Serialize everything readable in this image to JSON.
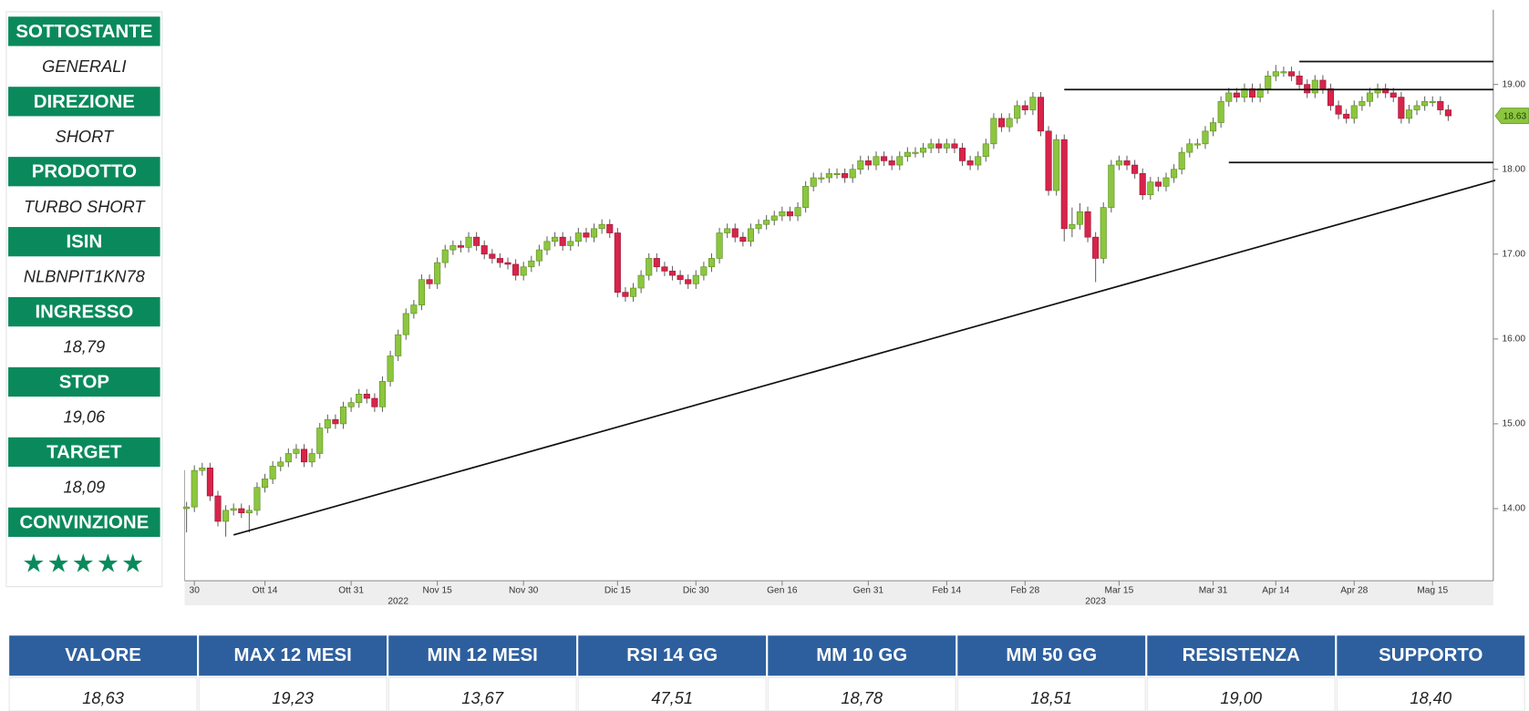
{
  "panel": {
    "rows": [
      {
        "label": "SOTTOSTANTE",
        "value": "GENERALI"
      },
      {
        "label": "DIREZIONE",
        "value": "SHORT"
      },
      {
        "label": "PRODOTTO",
        "value": "TURBO SHORT"
      },
      {
        "label": "ISIN",
        "value": "NLBNPIT1KN78"
      },
      {
        "label": "INGRESSO",
        "value": "18,79"
      },
      {
        "label": "STOP",
        "value": "19,06"
      },
      {
        "label": "TARGET",
        "value": "18,09"
      },
      {
        "label": "CONVINZIONE",
        "value": "★★★★★"
      }
    ]
  },
  "chart_data": {
    "type": "candlestick",
    "up_color": "#8cc63f",
    "down_color": "#d7244a",
    "open": [
      14.0,
      14.02,
      14.45,
      14.48,
      14.15,
      13.85,
      13.98,
      14.0,
      13.95,
      13.98,
      14.25,
      14.35,
      14.5,
      14.55,
      14.65,
      14.7,
      14.55,
      14.65,
      14.95,
      15.05,
      15.0,
      15.2,
      15.25,
      15.35,
      15.3,
      15.2,
      15.5,
      15.8,
      16.05,
      16.3,
      16.4,
      16.7,
      16.65,
      16.9,
      17.05,
      17.1,
      17.08,
      17.2,
      17.1,
      17.0,
      16.95,
      16.9,
      16.88,
      16.75,
      16.85,
      16.92,
      17.05,
      17.15,
      17.2,
      17.1,
      17.15,
      17.25,
      17.2,
      17.3,
      17.35,
      17.25,
      16.55,
      16.5,
      16.6,
      16.75,
      16.95,
      16.85,
      16.8,
      16.75,
      16.7,
      16.65,
      16.75,
      16.85,
      16.95,
      17.25,
      17.3,
      17.2,
      17.15,
      17.3,
      17.35,
      17.4,
      17.45,
      17.5,
      17.45,
      17.55,
      17.8,
      17.9,
      17.9,
      17.95,
      17.95,
      17.9,
      18.0,
      18.1,
      18.05,
      18.15,
      18.1,
      18.05,
      18.15,
      18.2,
      18.2,
      18.25,
      18.3,
      18.25,
      18.3,
      18.25,
      18.1,
      18.05,
      18.15,
      18.3,
      18.6,
      18.5,
      18.6,
      18.75,
      18.7,
      18.85,
      18.45,
      17.75,
      18.35,
      17.3,
      17.35,
      17.5,
      17.2,
      16.95,
      17.55,
      18.05,
      18.1,
      18.05,
      17.95,
      17.7,
      17.85,
      17.8,
      17.9,
      18.0,
      18.2,
      18.3,
      18.3,
      18.45,
      18.55,
      18.8,
      18.9,
      18.85,
      18.95,
      18.85,
      18.95,
      19.1,
      19.15,
      19.15,
      19.1,
      19.0,
      18.9,
      19.05,
      18.95,
      18.75,
      18.65,
      18.6,
      18.75,
      18.8,
      18.9,
      18.95,
      18.9,
      18.85,
      18.6,
      18.7,
      18.75,
      18.8,
      18.8,
      18.7
    ],
    "high": [
      14.08,
      14.51,
      14.54,
      14.54,
      14.21,
      14.04,
      14.06,
      14.06,
      14.04,
      14.31,
      14.41,
      14.56,
      14.61,
      14.71,
      14.76,
      14.76,
      14.71,
      15.01,
      15.11,
      15.11,
      15.26,
      15.31,
      15.41,
      15.41,
      15.36,
      15.56,
      15.86,
      16.11,
      16.36,
      16.46,
      16.76,
      16.76,
      16.96,
      17.11,
      17.16,
      17.16,
      17.26,
      17.26,
      17.16,
      17.06,
      17.01,
      16.96,
      16.94,
      16.91,
      16.98,
      17.11,
      17.21,
      17.26,
      17.26,
      17.21,
      17.31,
      17.31,
      17.36,
      17.41,
      17.41,
      17.31,
      16.61,
      16.66,
      16.81,
      17.01,
      17.01,
      16.91,
      16.86,
      16.81,
      16.76,
      16.81,
      16.91,
      17.01,
      17.31,
      17.36,
      17.36,
      17.26,
      17.36,
      17.41,
      17.46,
      17.51,
      17.56,
      17.56,
      17.61,
      17.86,
      17.96,
      17.96,
      18.01,
      18.01,
      18.01,
      18.06,
      18.16,
      18.16,
      18.21,
      18.21,
      18.16,
      18.21,
      18.26,
      18.26,
      18.31,
      18.36,
      18.36,
      18.36,
      18.36,
      18.31,
      18.16,
      18.21,
      18.36,
      18.66,
      18.66,
      18.66,
      18.81,
      18.81,
      18.91,
      18.91,
      18.51,
      18.41,
      18.41,
      17.55,
      17.6,
      17.56,
      17.26,
      17.61,
      18.11,
      18.16,
      18.16,
      18.11,
      18.01,
      17.91,
      17.91,
      17.96,
      18.06,
      18.26,
      18.36,
      18.36,
      18.51,
      18.61,
      18.86,
      18.96,
      18.96,
      19.01,
      19.01,
      19.01,
      19.16,
      19.23,
      19.21,
      19.21,
      19.16,
      19.06,
      19.11,
      19.11,
      19.01,
      18.81,
      18.71,
      18.81,
      18.86,
      18.96,
      19.01,
      19.01,
      18.96,
      18.91,
      18.76,
      18.81,
      18.86,
      18.86,
      18.86,
      18.76
    ],
    "low": [
      13.72,
      13.96,
      14.39,
      14.09,
      13.79,
      13.67,
      13.92,
      13.89,
      13.72,
      13.92,
      14.19,
      14.29,
      14.44,
      14.49,
      14.59,
      14.49,
      14.49,
      14.59,
      14.89,
      14.94,
      14.94,
      15.14,
      15.19,
      15.24,
      15.14,
      15.14,
      15.44,
      15.74,
      15.99,
      16.24,
      16.34,
      16.59,
      16.59,
      16.84,
      16.99,
      17.02,
      17.02,
      17.04,
      16.94,
      16.89,
      16.84,
      16.82,
      16.69,
      16.69,
      16.79,
      16.86,
      16.99,
      17.09,
      17.04,
      17.04,
      17.09,
      17.14,
      17.14,
      17.24,
      17.19,
      16.49,
      16.44,
      16.44,
      16.54,
      16.69,
      16.79,
      16.74,
      16.69,
      16.64,
      16.59,
      16.59,
      16.69,
      16.79,
      16.89,
      17.19,
      17.14,
      17.09,
      17.09,
      17.24,
      17.29,
      17.34,
      17.39,
      17.39,
      17.39,
      17.49,
      17.74,
      17.84,
      17.84,
      17.89,
      17.84,
      17.84,
      17.94,
      17.99,
      17.99,
      18.04,
      17.99,
      17.99,
      18.09,
      18.14,
      18.14,
      18.19,
      18.19,
      18.19,
      18.19,
      18.04,
      17.99,
      17.99,
      18.09,
      18.24,
      18.44,
      18.44,
      18.54,
      18.64,
      18.64,
      18.39,
      17.69,
      17.69,
      17.15,
      17.2,
      17.29,
      17.14,
      16.67,
      16.89,
      17.49,
      17.99,
      17.99,
      17.89,
      17.64,
      17.64,
      17.74,
      17.74,
      17.84,
      17.94,
      18.14,
      18.24,
      18.24,
      18.39,
      18.49,
      18.74,
      18.79,
      18.79,
      18.79,
      18.79,
      18.89,
      19.04,
      19.09,
      19.04,
      18.94,
      18.84,
      18.84,
      18.89,
      18.69,
      18.59,
      18.54,
      18.54,
      18.69,
      18.74,
      18.84,
      18.84,
      18.79,
      18.54,
      18.54,
      18.64,
      18.69,
      18.74,
      18.64,
      18.57
    ],
    "close": [
      14.02,
      14.45,
      14.48,
      14.15,
      13.85,
      13.98,
      14.0,
      13.95,
      13.98,
      14.25,
      14.35,
      14.5,
      14.55,
      14.65,
      14.7,
      14.55,
      14.65,
      14.95,
      15.05,
      15.0,
      15.2,
      15.25,
      15.35,
      15.3,
      15.2,
      15.5,
      15.8,
      16.05,
      16.3,
      16.4,
      16.7,
      16.65,
      16.9,
      17.05,
      17.1,
      17.08,
      17.2,
      17.1,
      17.0,
      16.95,
      16.9,
      16.88,
      16.75,
      16.85,
      16.92,
      17.05,
      17.15,
      17.2,
      17.1,
      17.15,
      17.25,
      17.2,
      17.3,
      17.35,
      17.25,
      16.55,
      16.5,
      16.6,
      16.75,
      16.95,
      16.85,
      16.8,
      16.75,
      16.7,
      16.65,
      16.75,
      16.85,
      16.95,
      17.25,
      17.3,
      17.2,
      17.15,
      17.3,
      17.35,
      17.4,
      17.45,
      17.5,
      17.45,
      17.55,
      17.8,
      17.9,
      17.9,
      17.95,
      17.95,
      17.9,
      18.0,
      18.1,
      18.05,
      18.15,
      18.1,
      18.05,
      18.15,
      18.2,
      18.2,
      18.25,
      18.3,
      18.25,
      18.3,
      18.25,
      18.1,
      18.05,
      18.15,
      18.3,
      18.6,
      18.5,
      18.6,
      18.75,
      18.7,
      18.85,
      18.45,
      17.75,
      18.35,
      17.3,
      17.35,
      17.5,
      17.2,
      16.95,
      17.55,
      18.05,
      18.1,
      18.05,
      17.95,
      17.7,
      17.85,
      17.8,
      17.9,
      18.0,
      18.2,
      18.3,
      18.3,
      18.45,
      18.55,
      18.8,
      18.9,
      18.85,
      18.95,
      18.85,
      18.95,
      19.1,
      19.15,
      19.15,
      19.1,
      19.0,
      18.9,
      19.05,
      18.95,
      18.75,
      18.65,
      18.6,
      18.75,
      18.8,
      18.9,
      18.95,
      18.9,
      18.85,
      18.6,
      18.7,
      18.75,
      18.8,
      18.8,
      18.7,
      18.63
    ],
    "ylim": [
      13.15,
      19.88
    ],
    "yticks": [
      {
        "value": 14,
        "label": "14.00"
      },
      {
        "value": 15,
        "label": "15.00"
      },
      {
        "value": 16,
        "label": "16.00"
      },
      {
        "value": 17,
        "label": "17.00"
      },
      {
        "value": 18,
        "label": "18.00"
      },
      {
        "value": 19,
        "label": "19.00"
      }
    ],
    "xticks": [
      {
        "value": 1,
        "label": "30"
      },
      {
        "value": 10,
        "label": "Ott 14"
      },
      {
        "value": 21,
        "label": "Ott 31"
      },
      {
        "value": 32,
        "label": "Nov 15"
      },
      {
        "value": 43,
        "label": "Nov 30"
      },
      {
        "value": 55,
        "label": "Dic 15"
      },
      {
        "value": 65,
        "label": "Dic 30"
      },
      {
        "value": 76,
        "label": "Gen 16"
      },
      {
        "value": 87,
        "label": "Gen 31"
      },
      {
        "value": 97,
        "label": "Feb 14"
      },
      {
        "value": 107,
        "label": "Feb 28"
      },
      {
        "value": 119,
        "label": "Mar 15"
      },
      {
        "value": 131,
        "label": "Mar 31"
      },
      {
        "value": 139,
        "label": "Apr 14"
      },
      {
        "value": 149,
        "label": "Apr 28"
      },
      {
        "value": 159,
        "label": "Mag 15"
      }
    ],
    "year_labels": [
      {
        "value": 27,
        "label": "2022"
      },
      {
        "value": 116,
        "label": "2023"
      }
    ],
    "hlines": [
      {
        "value": 19.27,
        "from": 142
      },
      {
        "value": 18.94,
        "from": 112
      },
      {
        "value": 18.08,
        "from": 133
      }
    ],
    "trendline": {
      "x": [
        6,
        167
      ],
      "y": [
        13.69,
        17.87
      ]
    },
    "last_price": 18.63,
    "last_price_color": "#8cc63f"
  },
  "table": {
    "headers": [
      "VALORE",
      "MAX 12 MESI",
      "MIN 12 MESI",
      "RSI 14 GG",
      "MM 10 GG",
      "MM 50 GG",
      "RESISTENZA",
      "SUPPORTO"
    ],
    "values": [
      "18,63",
      "19,23",
      "13,67",
      "47,51",
      "18,78",
      "18,51",
      "19,00",
      "18,40"
    ]
  }
}
